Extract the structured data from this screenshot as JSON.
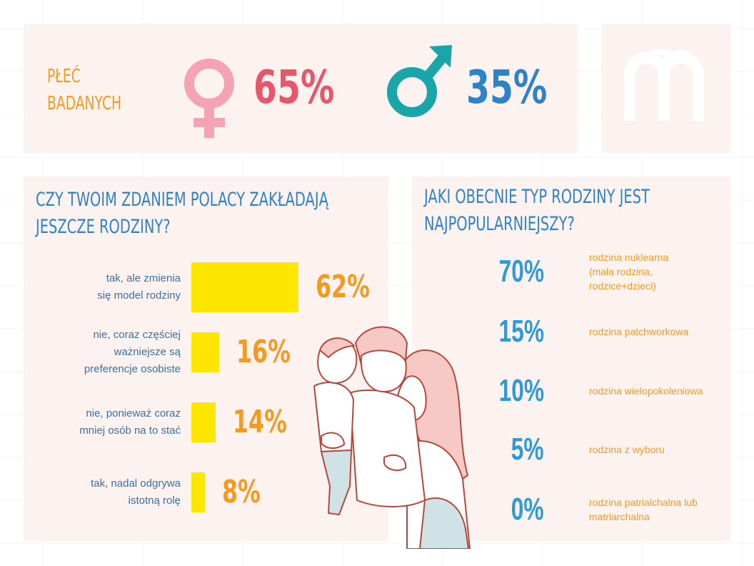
{
  "gender": {
    "label_line1": "PŁEĆ",
    "label_line2": "BADANYCH",
    "female_pct": "65%",
    "male_pct": "35%",
    "female_icon": "female-symbol-icon",
    "male_icon": "male-symbol-icon",
    "female_color": "#e8566c",
    "male_color": "#2e82c8"
  },
  "logo": {
    "icon": "brand-logo-icon"
  },
  "chart_data": [
    {
      "type": "bar",
      "orientation": "horizontal",
      "title_line1": "CZY TWOIM ZDANIEM POLACY ZAKŁADAJĄ",
      "title_line2": "JESZCZE RODZINY?",
      "categories": [
        [
          "tak, ale zmienia",
          "się model rodziny"
        ],
        [
          "nie, coraz częściej",
          "ważniejsze są",
          "preferencje osobiste"
        ],
        [
          "nie, ponieważ coraz",
          "mniej osób na to stać"
        ],
        [
          "tak, nadal odgrywa",
          "istotną rolę"
        ]
      ],
      "values": [
        62,
        16,
        14,
        8
      ],
      "value_labels": [
        "62%",
        "16%",
        "14%",
        "8%"
      ],
      "bar_color": "#fde700",
      "value_color": "#f39a1f"
    },
    {
      "type": "table",
      "title_line1": "JAKI OBECNIE TYP RODZINY JEST",
      "title_line2": "NAJPOPULARNIEJSZY?",
      "rows": [
        {
          "value": "70%",
          "label": [
            "rodzina nuklearna",
            "(mała rodzina,",
            "rodzice+dzieci)"
          ]
        },
        {
          "value": "15%",
          "label": [
            "rodzina patchworkowa"
          ]
        },
        {
          "value": "10%",
          "label": [
            "rodzina wielopokoleniowa"
          ]
        },
        {
          "value": "5%",
          "label": [
            "rodzina z wyboru"
          ]
        },
        {
          "value": "0%",
          "label": [
            "rodzina patrialchalna lub",
            "matriarchalna"
          ]
        }
      ],
      "value_color": "#2e9ad8",
      "label_color": "#f39a1f"
    }
  ],
  "illustration": {
    "icon": "family-illustration"
  }
}
